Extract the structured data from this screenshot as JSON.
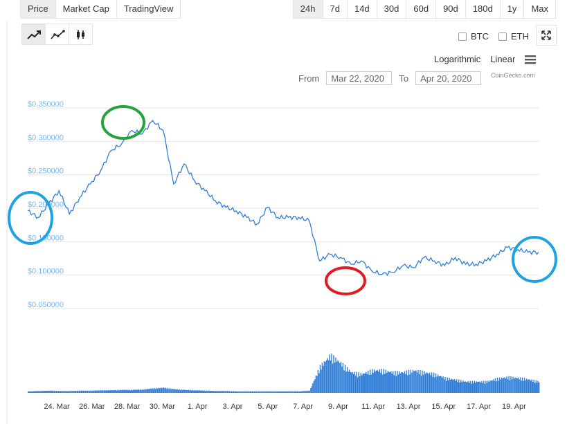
{
  "tabs": [
    {
      "label": "Price",
      "active": true
    },
    {
      "label": "Market Cap",
      "active": false
    },
    {
      "label": "TradingView",
      "active": false
    }
  ],
  "periods": [
    {
      "label": "24h",
      "active": true
    },
    {
      "label": "7d",
      "active": false
    },
    {
      "label": "14d",
      "active": false
    },
    {
      "label": "30d",
      "active": false
    },
    {
      "label": "60d",
      "active": false
    },
    {
      "label": "90d",
      "active": false
    },
    {
      "label": "180d",
      "active": false
    },
    {
      "label": "1y",
      "active": false
    },
    {
      "label": "Max",
      "active": false
    }
  ],
  "chart_types": [
    {
      "icon": "line-chart-icon",
      "active": true
    },
    {
      "icon": "ohlc-line-icon",
      "active": false
    },
    {
      "icon": "candlestick-icon",
      "active": false
    }
  ],
  "compare": {
    "btc": "BTC",
    "eth": "ETH"
  },
  "scale": {
    "log": "Logarithmic",
    "linear": "Linear"
  },
  "range": {
    "from_label": "From",
    "from_value": "Mar 22, 2020",
    "to_label": "To",
    "to_value": "Apr 20, 2020"
  },
  "credits": "CoinGecko.com",
  "colors": {
    "line": "#2f7ed8",
    "volume": "#2f7ed8",
    "ytick": "#7cb5ec",
    "circle_blue": "#1fa3e0",
    "circle_green": "#25a43c",
    "circle_red": "#e01b24"
  },
  "chart_data": {
    "type": "line",
    "series": [
      {
        "x": [
          "Mar 22",
          "Mar 22.5",
          "Mar 23",
          "Mar 23.5",
          "Mar 24",
          "Mar 24.5",
          "Mar 25",
          "Mar 25.5",
          "Mar 26",
          "Mar 26.5",
          "Mar 27",
          "Mar 27.5",
          "Mar 28",
          "Mar 28.2",
          "Mar 28.4",
          "Mar 28.6",
          "Mar 29",
          "Mar 29.5",
          "Mar 30",
          "Mar 30.5",
          "Mar 31",
          "Apr 1",
          "Apr 2",
          "Apr 3",
          "Apr 3.5",
          "Apr 4",
          "Apr 5",
          "Apr 6",
          "Apr 6.3",
          "Apr 6.6",
          "Apr 7",
          "Apr 7.5",
          "Apr 8",
          "Apr 8.5",
          "Apr 9",
          "Apr 9.5",
          "Apr 10",
          "Apr 10.5",
          "Apr 11",
          "Apr 12",
          "Apr 13",
          "Apr 14",
          "Apr 15",
          "Apr 16",
          "Apr 17",
          "Apr 18",
          "Apr 18.5",
          "Apr 19",
          "Apr 19.5",
          "Apr 20"
        ],
        "values": [
          0.19,
          0.18,
          0.2,
          0.22,
          0.185,
          0.21,
          0.23,
          0.25,
          0.28,
          0.29,
          0.31,
          0.305,
          0.325,
          0.31,
          0.23,
          0.26,
          0.235,
          0.22,
          0.205,
          0.195,
          0.19,
          0.18,
          0.17,
          0.195,
          0.18,
          0.18,
          0.18,
          0.175,
          0.115,
          0.125,
          0.12,
          0.11,
          0.115,
          0.1,
          0.095,
          0.098,
          0.108,
          0.105,
          0.12,
          0.115,
          0.108,
          0.12,
          0.11,
          0.11,
          0.115,
          0.125,
          0.135,
          0.132,
          0.128,
          0.128
        ]
      }
    ],
    "volume": [
      0.04,
      0.05,
      0.06,
      0.05,
      0.05,
      0.06,
      0.06,
      0.07,
      0.07,
      0.08,
      0.08,
      0.09,
      0.12,
      0.14,
      0.1,
      0.08,
      0.07,
      0.06,
      0.05,
      0.05,
      0.04,
      0.04,
      0.04,
      0.04,
      0.04,
      0.04,
      0.04,
      0.06,
      0.7,
      1.0,
      0.8,
      0.55,
      0.5,
      0.6,
      0.6,
      0.55,
      0.55,
      0.6,
      0.55,
      0.5,
      0.4,
      0.35,
      0.3,
      0.3,
      0.3,
      0.38,
      0.42,
      0.4,
      0.36,
      0.3
    ],
    "y_ticks": [
      "$0.350000",
      "$0.300000",
      "$0.250000",
      "$0.200000",
      "$0.150000",
      "$0.100000",
      "$0.050000"
    ],
    "y_tick_values": [
      0.35,
      0.3,
      0.25,
      0.2,
      0.15,
      0.1,
      0.05
    ],
    "x_ticks": [
      "24. Mar",
      "26. Mar",
      "28. Mar",
      "30. Mar",
      "1. Apr",
      "3. Apr",
      "5. Apr",
      "7. Apr",
      "9. Apr",
      "11. Apr",
      "13. Apr",
      "15. Apr",
      "17. Apr",
      "19. Apr"
    ],
    "ylim": [
      0.0,
      0.36
    ],
    "grid": true,
    "annotations": [
      {
        "shape": "ellipse",
        "color": "blue",
        "at": "start"
      },
      {
        "shape": "ellipse",
        "color": "green",
        "at": "peak"
      },
      {
        "shape": "ellipse",
        "color": "red",
        "at": "low"
      },
      {
        "shape": "ellipse",
        "color": "blue",
        "at": "end"
      }
    ]
  }
}
